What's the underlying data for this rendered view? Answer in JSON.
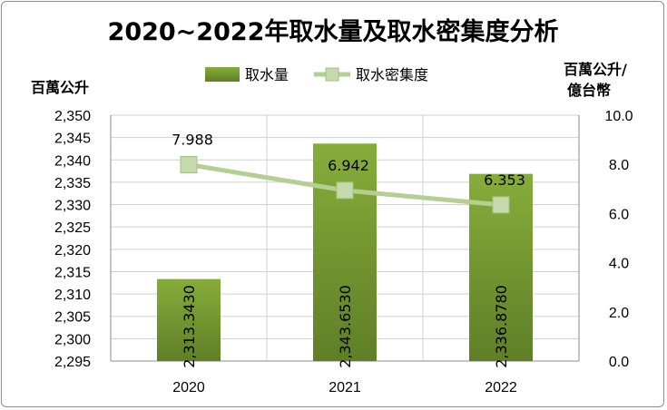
{
  "chart_data": {
    "type": "bar+line",
    "title": "2020~2022年取水量及取水密集度分析",
    "categories": [
      "2020",
      "2021",
      "2022"
    ],
    "series": [
      {
        "name": "取水量",
        "type": "bar",
        "axis": "left",
        "values": [
          2313.343,
          2343.653,
          2336.878
        ],
        "labels": [
          "2,313.3430",
          "2,343.6530",
          "2,336.8780"
        ],
        "color": "#7a9e32"
      },
      {
        "name": "取水密集度",
        "type": "line",
        "axis": "right",
        "values": [
          7.988,
          6.942,
          6.353
        ],
        "labels": [
          "7.988",
          "6.942",
          "6.353"
        ],
        "color": "#b3cf92"
      }
    ],
    "y_left": {
      "label": "百萬公升",
      "ylim": [
        2295,
        2350
      ],
      "ticks": [
        "2,295",
        "2,300",
        "2,305",
        "2,310",
        "2,315",
        "2,320",
        "2,325",
        "2,330",
        "2,335",
        "2,340",
        "2,345",
        "2,350"
      ]
    },
    "y_right": {
      "label_line1": "百萬公升/",
      "label_line2": "億台幣",
      "ylim": [
        0,
        10
      ],
      "ticks": [
        "0.0",
        "2.0",
        "4.0",
        "6.0",
        "8.0",
        "10.0"
      ]
    },
    "grid": true,
    "legend_position": "top"
  }
}
